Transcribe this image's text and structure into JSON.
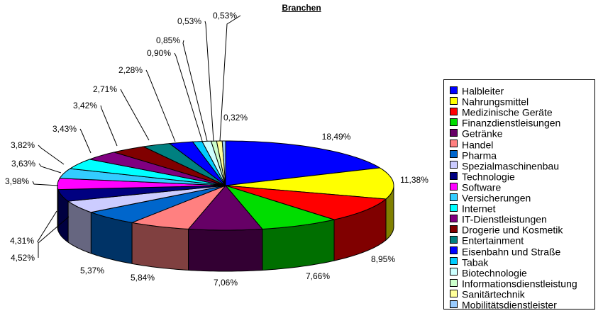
{
  "chart_data": {
    "type": "pie",
    "style": "3d-exploded-none",
    "title": "Branchen",
    "legend_position": "right",
    "slices": [
      {
        "label": "Halbleiter",
        "value": 18.49,
        "value_label": "18,49%",
        "color": "#0000FF"
      },
      {
        "label": "Nahrungsmittel",
        "value": 11.38,
        "value_label": "11,38%",
        "color": "#FFFF00"
      },
      {
        "label": "Medizinische Geräte",
        "value": 8.95,
        "value_label": "8,95%",
        "color": "#FF0000"
      },
      {
        "label": "Finanzdienstleisungen",
        "value": 7.66,
        "value_label": "7,66%",
        "color": "#00DD00"
      },
      {
        "label": "Getränke",
        "value": 7.06,
        "value_label": "7,06%",
        "color": "#660066"
      },
      {
        "label": "Handel",
        "value": 5.84,
        "value_label": "5,84%",
        "color": "#FF8080"
      },
      {
        "label": "Pharma",
        "value": 5.37,
        "value_label": "5,37%",
        "color": "#0066CC"
      },
      {
        "label": "Spezialmaschinenbau",
        "value": 4.52,
        "value_label": "4,52%",
        "color": "#CCCCFF"
      },
      {
        "label": "Technologie",
        "value": 4.31,
        "value_label": "4,31%",
        "color": "#000080"
      },
      {
        "label": "Software",
        "value": 3.98,
        "value_label": "3,98%",
        "color": "#FF00FF"
      },
      {
        "label": "Versicherungen",
        "value": 3.63,
        "value_label": "3,63%",
        "color": "#33CCFF"
      },
      {
        "label": "Internet",
        "value": 3.82,
        "value_label": "3,82%",
        "color": "#00FFFF"
      },
      {
        "label": "IT-Dienstleistungen",
        "value": 3.43,
        "value_label": "3,43%",
        "color": "#800080"
      },
      {
        "label": "Drogerie und Kosmetik",
        "value": 3.42,
        "value_label": "3,42%",
        "color": "#800000"
      },
      {
        "label": "Entertainment",
        "value": 2.71,
        "value_label": "2,71%",
        "color": "#008080"
      },
      {
        "label": "Eisenbahn und Straße",
        "value": 2.28,
        "value_label": "2,28%",
        "color": "#0000FF"
      },
      {
        "label": "Tabak",
        "value": 0.9,
        "value_label": "0,90%",
        "color": "#00CCFF"
      },
      {
        "label": "Biotechnologie",
        "value": 0.85,
        "value_label": "0,85%",
        "color": "#CCFFFF"
      },
      {
        "label": "Informationsdienstleistung",
        "value": 0.53,
        "value_label": "0,53%",
        "color": "#CCFFCC"
      },
      {
        "label": "Sanitärtechnik",
        "value": 0.53,
        "value_label": "0,53%",
        "color": "#FFFF99"
      },
      {
        "label": "Mobilitätsdienstleister",
        "value": 0.32,
        "value_label": "0,32%",
        "color": "#99CCFF"
      }
    ]
  }
}
